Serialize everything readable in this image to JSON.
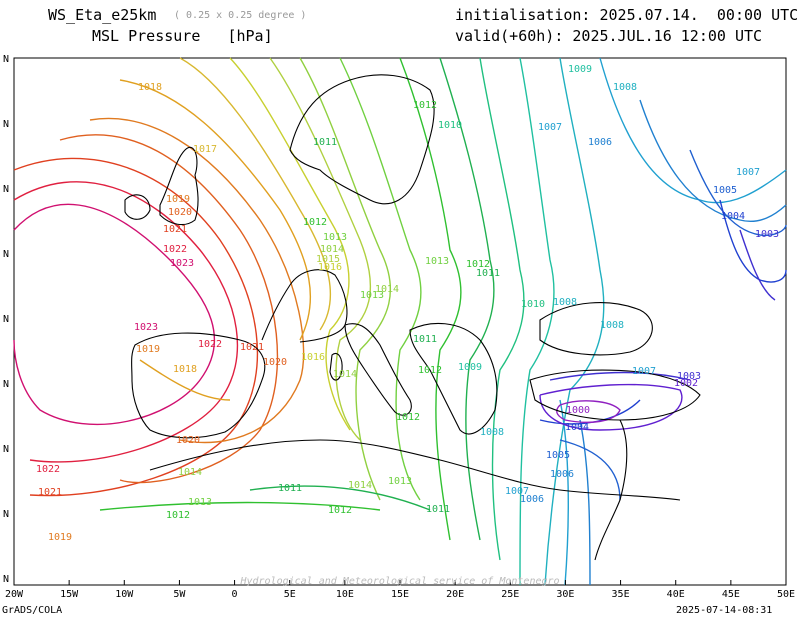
{
  "header": {
    "model": "WS_Eta_e25km",
    "resolution": "( 0.25 x 0.25 degree )",
    "field": "MSL Pressure   [hPa]",
    "init": "initialisation: 2025.07.14.  00:00 UTC",
    "valid": "valid(+60h): 2025.JUL.16 12:00 UTC"
  },
  "footer": {
    "left": "GrADS/COLA",
    "right": "2025-07-14-08:31",
    "watermark": "Hydrological and Meteorological service of Montenegro"
  },
  "axis": {
    "lon_labels": [
      "20W",
      "15W",
      "10W",
      "5W",
      "0",
      "5E",
      "10E",
      "15E",
      "20E",
      "25E",
      "30E",
      "35E",
      "40E",
      "45E",
      "50E"
    ],
    "lat_labels": [
      "N",
      "N",
      "N",
      "N",
      "N",
      "N",
      "N",
      "N",
      "N"
    ]
  },
  "isobars": [
    {
      "value": "1018",
      "color": "#e0a020"
    },
    {
      "value": "1017",
      "color": "#d8b830"
    },
    {
      "value": "1019",
      "color": "#e07a20"
    },
    {
      "value": "1020",
      "color": "#e06020"
    },
    {
      "value": "1021",
      "color": "#e04020"
    },
    {
      "value": "1022",
      "color": "#e02040"
    },
    {
      "value": "1023",
      "color": "#d01070"
    },
    {
      "value": "1016",
      "color": "#c8d030"
    },
    {
      "value": "1015",
      "color": "#b0d040"
    },
    {
      "value": "1014",
      "color": "#90d040"
    },
    {
      "value": "1013",
      "color": "#70d040"
    },
    {
      "value": "1012",
      "color": "#30c030"
    },
    {
      "value": "1011",
      "color": "#20b050"
    },
    {
      "value": "1010",
      "color": "#20c080"
    },
    {
      "value": "1009",
      "color": "#20c0a0"
    },
    {
      "value": "1008",
      "color": "#20b0c0"
    },
    {
      "value": "1007",
      "color": "#20a0d0"
    },
    {
      "value": "1006",
      "color": "#2080d0"
    },
    {
      "value": "1005",
      "color": "#2060d0"
    },
    {
      "value": "1004",
      "color": "#2040d0"
    },
    {
      "value": "1003",
      "color": "#4030d0"
    },
    {
      "value": "1002",
      "color": "#6020d0"
    },
    {
      "value": "1000",
      "color": "#9020c0"
    }
  ]
}
